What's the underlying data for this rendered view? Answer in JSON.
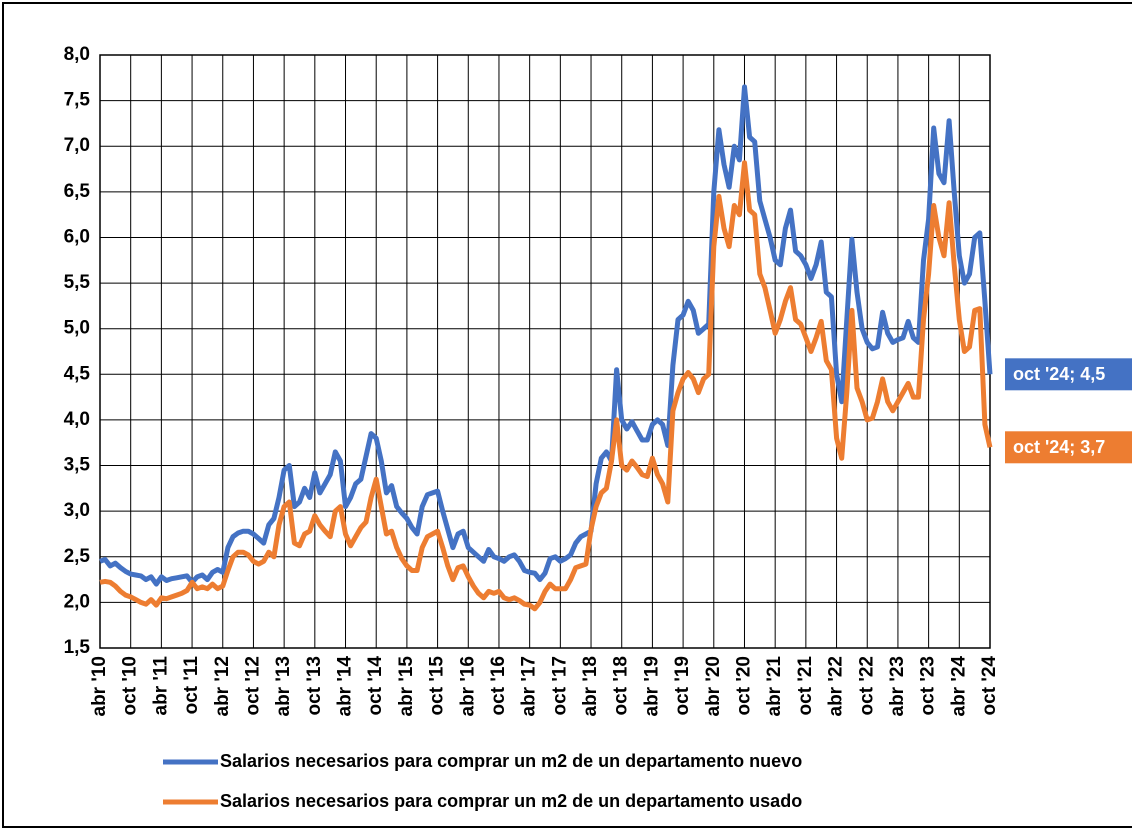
{
  "chart_data": {
    "type": "line",
    "categories": [
      "abr '10",
      null,
      null,
      null,
      null,
      null,
      "oct '10",
      null,
      null,
      null,
      null,
      null,
      "abr '11",
      null,
      null,
      null,
      null,
      null,
      "oct '11",
      null,
      null,
      null,
      null,
      null,
      "abr '12",
      null,
      null,
      null,
      null,
      null,
      "oct '12",
      null,
      null,
      null,
      null,
      null,
      "abr '13",
      null,
      null,
      null,
      null,
      null,
      "oct '13",
      null,
      null,
      null,
      null,
      null,
      "abr '14",
      null,
      null,
      null,
      null,
      null,
      "oct '14",
      null,
      null,
      null,
      null,
      null,
      "abr '15",
      null,
      null,
      null,
      null,
      null,
      "oct '15",
      null,
      null,
      null,
      null,
      null,
      "abr '16",
      null,
      null,
      null,
      null,
      null,
      "oct '16",
      null,
      null,
      null,
      null,
      null,
      "abr '17",
      null,
      null,
      null,
      null,
      null,
      "oct '17",
      null,
      null,
      null,
      null,
      null,
      "abr '18",
      null,
      null,
      null,
      null,
      null,
      "oct '18",
      null,
      null,
      null,
      null,
      null,
      "abr '19",
      null,
      null,
      null,
      null,
      null,
      "oct '19",
      null,
      null,
      null,
      null,
      null,
      "abr '20",
      null,
      null,
      null,
      null,
      null,
      "oct '20",
      null,
      null,
      null,
      null,
      null,
      "abr '21",
      null,
      null,
      null,
      null,
      null,
      "oct '21",
      null,
      null,
      null,
      null,
      null,
      "abr '22",
      null,
      null,
      null,
      null,
      null,
      "oct '22",
      null,
      null,
      null,
      null,
      null,
      "abr '23",
      null,
      null,
      null,
      null,
      null,
      "oct '23",
      null,
      null,
      null,
      null,
      null,
      "abr '24",
      null,
      null,
      null,
      null,
      null,
      "oct '24"
    ],
    "series": [
      {
        "name": "Salarios necesarios para comprar un m2 de un departamento nuevo",
        "color": "#4472c4",
        "values": [
          2.45,
          2.47,
          2.4,
          2.43,
          2.38,
          2.34,
          2.31,
          2.3,
          2.29,
          2.25,
          2.28,
          2.2,
          2.28,
          2.24,
          2.26,
          2.27,
          2.28,
          2.29,
          2.22,
          2.28,
          2.3,
          2.25,
          2.33,
          2.36,
          2.33,
          2.6,
          2.72,
          2.76,
          2.78,
          2.78,
          2.75,
          2.7,
          2.65,
          2.85,
          2.92,
          3.15,
          3.45,
          3.5,
          3.05,
          3.1,
          3.25,
          3.15,
          3.42,
          3.2,
          3.3,
          3.4,
          3.65,
          3.55,
          3.05,
          3.15,
          3.3,
          3.35,
          3.6,
          3.85,
          3.8,
          3.55,
          3.2,
          3.28,
          3.05,
          2.98,
          2.92,
          2.82,
          2.75,
          3.05,
          3.18,
          3.2,
          3.22,
          3.0,
          2.8,
          2.6,
          2.75,
          2.78,
          2.6,
          2.55,
          2.5,
          2.45,
          2.58,
          2.5,
          2.48,
          2.45,
          2.5,
          2.52,
          2.45,
          2.35,
          2.33,
          2.32,
          2.25,
          2.32,
          2.48,
          2.5,
          2.45,
          2.48,
          2.52,
          2.65,
          2.72,
          2.75,
          2.78,
          3.3,
          3.58,
          3.65,
          3.55,
          4.55,
          4.0,
          3.9,
          3.98,
          3.88,
          3.78,
          3.78,
          3.95,
          4.0,
          3.95,
          3.72,
          4.6,
          5.1,
          5.15,
          5.3,
          5.2,
          4.95,
          5.0,
          5.05,
          6.5,
          7.18,
          6.8,
          6.55,
          7.0,
          6.85,
          7.65,
          7.1,
          7.05,
          6.4,
          6.2,
          6.0,
          5.75,
          5.7,
          6.1,
          6.3,
          5.85,
          5.8,
          5.7,
          5.55,
          5.7,
          5.95,
          5.4,
          5.35,
          4.5,
          4.2,
          5.1,
          5.98,
          5.4,
          5.0,
          4.85,
          4.78,
          4.8,
          5.18,
          4.95,
          4.85,
          4.88,
          4.9,
          5.08,
          4.9,
          4.85,
          5.75,
          6.2,
          7.2,
          6.7,
          6.6,
          7.28,
          6.5,
          5.8,
          5.5,
          5.6,
          6.0,
          6.05,
          5.3,
          4.5
        ],
        "value_labels": [
          null,
          null,
          null,
          null,
          null,
          null,
          null,
          null,
          null,
          null,
          null,
          null,
          null,
          null,
          null,
          null,
          null,
          null,
          null,
          null,
          null,
          null,
          null,
          null,
          null,
          null,
          null,
          null,
          null,
          null,
          null,
          null,
          null,
          null,
          null,
          null,
          null,
          null,
          null,
          null,
          null,
          null,
          null,
          null,
          null,
          null,
          null,
          null,
          null,
          null,
          null,
          null,
          null,
          null,
          null,
          null,
          null,
          null,
          null,
          null,
          null,
          null,
          null,
          null,
          null,
          null,
          null,
          null,
          null,
          null,
          null,
          null,
          null,
          null,
          null,
          null,
          null,
          null,
          null,
          null,
          null,
          null,
          null,
          null,
          null,
          null,
          null,
          null,
          null,
          null,
          null,
          null,
          null,
          null,
          null,
          null,
          null,
          null,
          null,
          null,
          null,
          null,
          null,
          null,
          null,
          null,
          null,
          null,
          null,
          null,
          null,
          null,
          null,
          null,
          null,
          null,
          null,
          null,
          null,
          null,
          null,
          null,
          null,
          null,
          null,
          null,
          null,
          null,
          null,
          null,
          null,
          null,
          null,
          null,
          null,
          null,
          null,
          null,
          null,
          null,
          null,
          null,
          null,
          null,
          null,
          null,
          null,
          null,
          null,
          null,
          null,
          null,
          null,
          null,
          null,
          null,
          null,
          null,
          null,
          null,
          null,
          null,
          null,
          null,
          null,
          null,
          null,
          null,
          null,
          null,
          null,
          null,
          null,
          null,
          "oct '24; 4,5"
        ]
      },
      {
        "name": "Salarios necesarios para comprar un m2 de un departamento usado",
        "color": "#ed7d31",
        "values": [
          2.22,
          2.23,
          2.22,
          2.18,
          2.12,
          2.08,
          2.06,
          2.03,
          2.0,
          1.98,
          2.03,
          1.97,
          2.05,
          2.04,
          2.06,
          2.08,
          2.1,
          2.13,
          2.22,
          2.15,
          2.17,
          2.15,
          2.2,
          2.15,
          2.18,
          2.35,
          2.5,
          2.55,
          2.55,
          2.52,
          2.45,
          2.42,
          2.45,
          2.55,
          2.5,
          2.85,
          3.05,
          3.1,
          2.65,
          2.62,
          2.75,
          2.78,
          2.95,
          2.85,
          2.78,
          2.72,
          3.0,
          3.05,
          2.75,
          2.62,
          2.72,
          2.82,
          2.88,
          3.15,
          3.35,
          3.05,
          2.75,
          2.78,
          2.6,
          2.48,
          2.4,
          2.35,
          2.35,
          2.6,
          2.72,
          2.75,
          2.78,
          2.6,
          2.4,
          2.25,
          2.38,
          2.4,
          2.28,
          2.18,
          2.1,
          2.05,
          2.12,
          2.1,
          2.12,
          2.05,
          2.03,
          2.05,
          2.02,
          1.98,
          1.97,
          1.93,
          2.0,
          2.12,
          2.2,
          2.15,
          2.15,
          2.15,
          2.25,
          2.38,
          2.4,
          2.42,
          2.8,
          3.05,
          3.2,
          3.25,
          3.55,
          4.0,
          3.5,
          3.45,
          3.55,
          3.48,
          3.4,
          3.38,
          3.58,
          3.4,
          3.3,
          3.1,
          4.1,
          4.3,
          4.45,
          4.52,
          4.45,
          4.3,
          4.45,
          4.5,
          5.9,
          6.45,
          6.1,
          5.9,
          6.35,
          6.25,
          6.82,
          6.3,
          6.25,
          5.6,
          5.45,
          5.2,
          4.95,
          5.1,
          5.3,
          5.45,
          5.1,
          5.05,
          4.9,
          4.75,
          4.9,
          5.08,
          4.65,
          4.55,
          3.8,
          3.58,
          4.3,
          5.2,
          4.35,
          4.2,
          4.0,
          4.02,
          4.2,
          4.45,
          4.2,
          4.1,
          4.2,
          4.3,
          4.4,
          4.25,
          4.25,
          5.1,
          5.6,
          6.35,
          6.0,
          5.8,
          6.38,
          5.7,
          5.1,
          4.75,
          4.8,
          5.2,
          5.22,
          3.95,
          3.7
        ],
        "value_labels": [
          null,
          null,
          null,
          null,
          null,
          null,
          null,
          null,
          null,
          null,
          null,
          null,
          null,
          null,
          null,
          null,
          null,
          null,
          null,
          null,
          null,
          null,
          null,
          null,
          null,
          null,
          null,
          null,
          null,
          null,
          null,
          null,
          null,
          null,
          null,
          null,
          null,
          null,
          null,
          null,
          null,
          null,
          null,
          null,
          null,
          null,
          null,
          null,
          null,
          null,
          null,
          null,
          null,
          null,
          null,
          null,
          null,
          null,
          null,
          null,
          null,
          null,
          null,
          null,
          null,
          null,
          null,
          null,
          null,
          null,
          null,
          null,
          null,
          null,
          null,
          null,
          null,
          null,
          null,
          null,
          null,
          null,
          null,
          null,
          null,
          null,
          null,
          null,
          null,
          null,
          null,
          null,
          null,
          null,
          null,
          null,
          null,
          null,
          null,
          null,
          null,
          null,
          null,
          null,
          null,
          null,
          null,
          null,
          null,
          null,
          null,
          null,
          null,
          null,
          null,
          null,
          null,
          null,
          null,
          null,
          null,
          null,
          null,
          null,
          null,
          null,
          null,
          null,
          null,
          null,
          null,
          null,
          null,
          null,
          null,
          null,
          null,
          null,
          null,
          null,
          null,
          null,
          null,
          null,
          null,
          null,
          null,
          null,
          null,
          null,
          null,
          null,
          null,
          null,
          null,
          null,
          null,
          null,
          null,
          null,
          null,
          null,
          null,
          null,
          null,
          null,
          null,
          null,
          null,
          null,
          null,
          null,
          null,
          null,
          "oct '24; 3,7"
        ]
      }
    ],
    "ylim": [
      1.5,
      8.0
    ],
    "yticks": [
      {
        "value": 1.5,
        "label": "1,5"
      },
      {
        "value": 2.0,
        "label": "2,0"
      },
      {
        "value": 2.5,
        "label": "2,5"
      },
      {
        "value": 3.0,
        "label": "3,0"
      },
      {
        "value": 3.5,
        "label": "3,5"
      },
      {
        "value": 4.0,
        "label": "4,0"
      },
      {
        "value": 4.5,
        "label": "4,5"
      },
      {
        "value": 5.0,
        "label": "5,0"
      },
      {
        "value": 5.5,
        "label": "5,5"
      },
      {
        "value": 6.0,
        "label": "6,0"
      },
      {
        "value": 6.5,
        "label": "6,5"
      },
      {
        "value": 7.0,
        "label": "7,0"
      },
      {
        "value": 7.5,
        "label": "7,5"
      },
      {
        "value": 8.0,
        "label": "8,0"
      }
    ],
    "grid": true,
    "legend": "bottom"
  }
}
